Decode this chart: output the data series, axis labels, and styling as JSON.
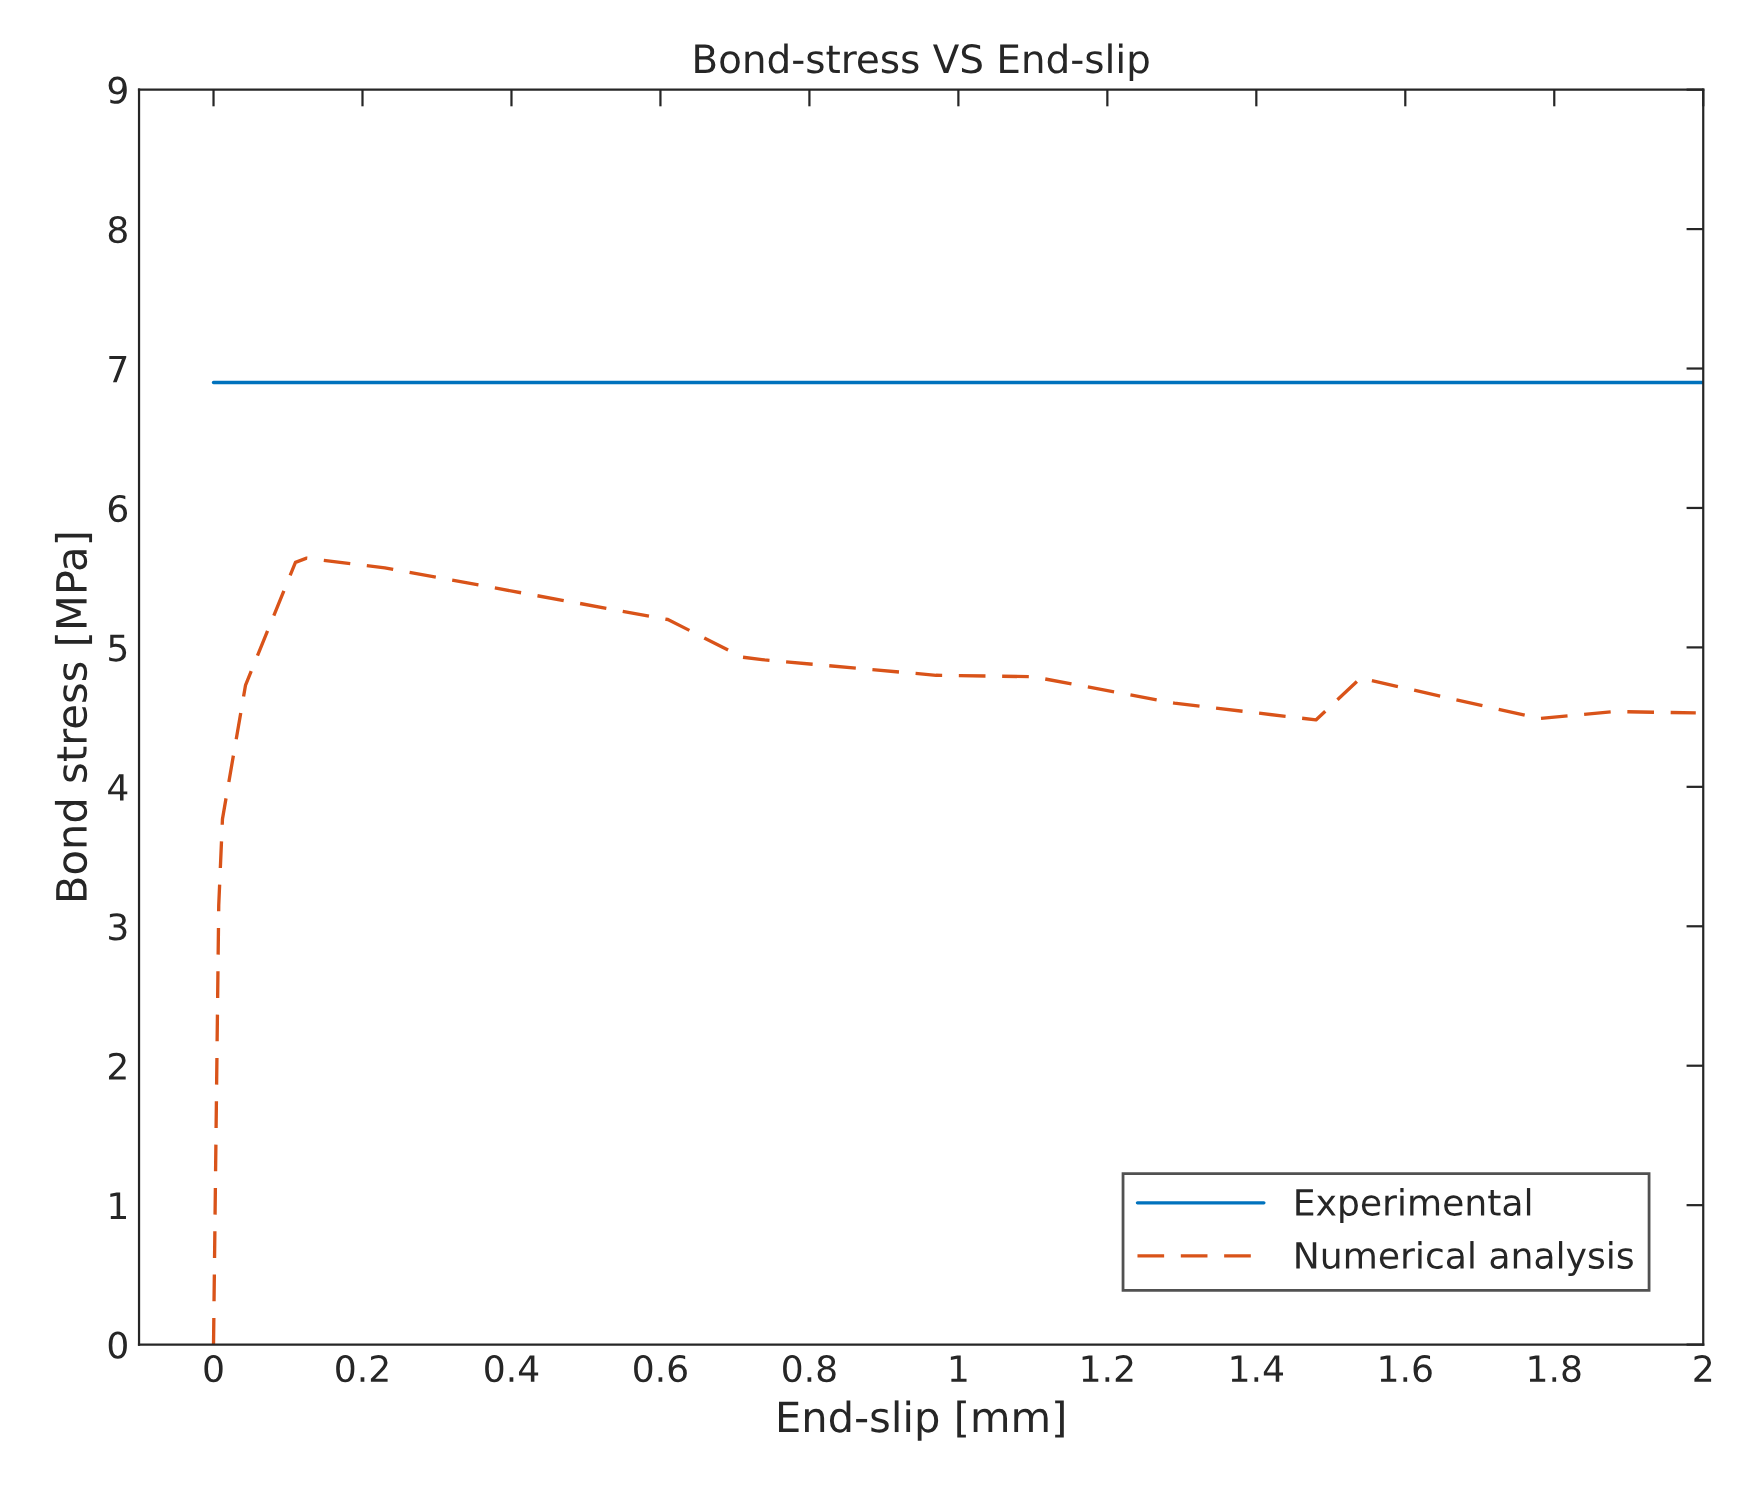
{
  "chart_data": {
    "type": "line",
    "title": "Bond-stress VS End-slip",
    "xlabel": "End-slip [mm]",
    "ylabel": "Bond stress [MPa]",
    "xlim": [
      -0.1,
      2
    ],
    "ylim": [
      0,
      9
    ],
    "xticks": [
      0,
      0.2,
      0.4,
      0.6,
      0.8,
      1,
      1.2,
      1.4,
      1.6,
      1.8,
      2
    ],
    "yticks": [
      0,
      1,
      2,
      3,
      4,
      5,
      6,
      7,
      8,
      9
    ],
    "grid": false,
    "legend": "bottom right",
    "series": [
      {
        "name": "Experimental",
        "color": "#0072bd",
        "line_style": "solid",
        "x": [
          0,
          2
        ],
        "values": [
          6.9,
          6.9
        ]
      },
      {
        "name": "Numerical analysis",
        "color": "#d95319",
        "line_style": "dashed",
        "x": [
          0,
          0.007,
          0.012,
          0.043,
          0.11,
          0.125,
          0.23,
          0.61,
          0.71,
          0.74,
          0.97,
          1.1,
          1.29,
          1.48,
          1.54,
          1.78,
          1.88,
          1.99
        ],
        "values": [
          0,
          3.15,
          3.77,
          4.73,
          5.61,
          5.64,
          5.57,
          5.2,
          4.93,
          4.91,
          4.8,
          4.79,
          4.6,
          4.48,
          4.78,
          4.49,
          4.54,
          4.53
        ]
      }
    ]
  }
}
